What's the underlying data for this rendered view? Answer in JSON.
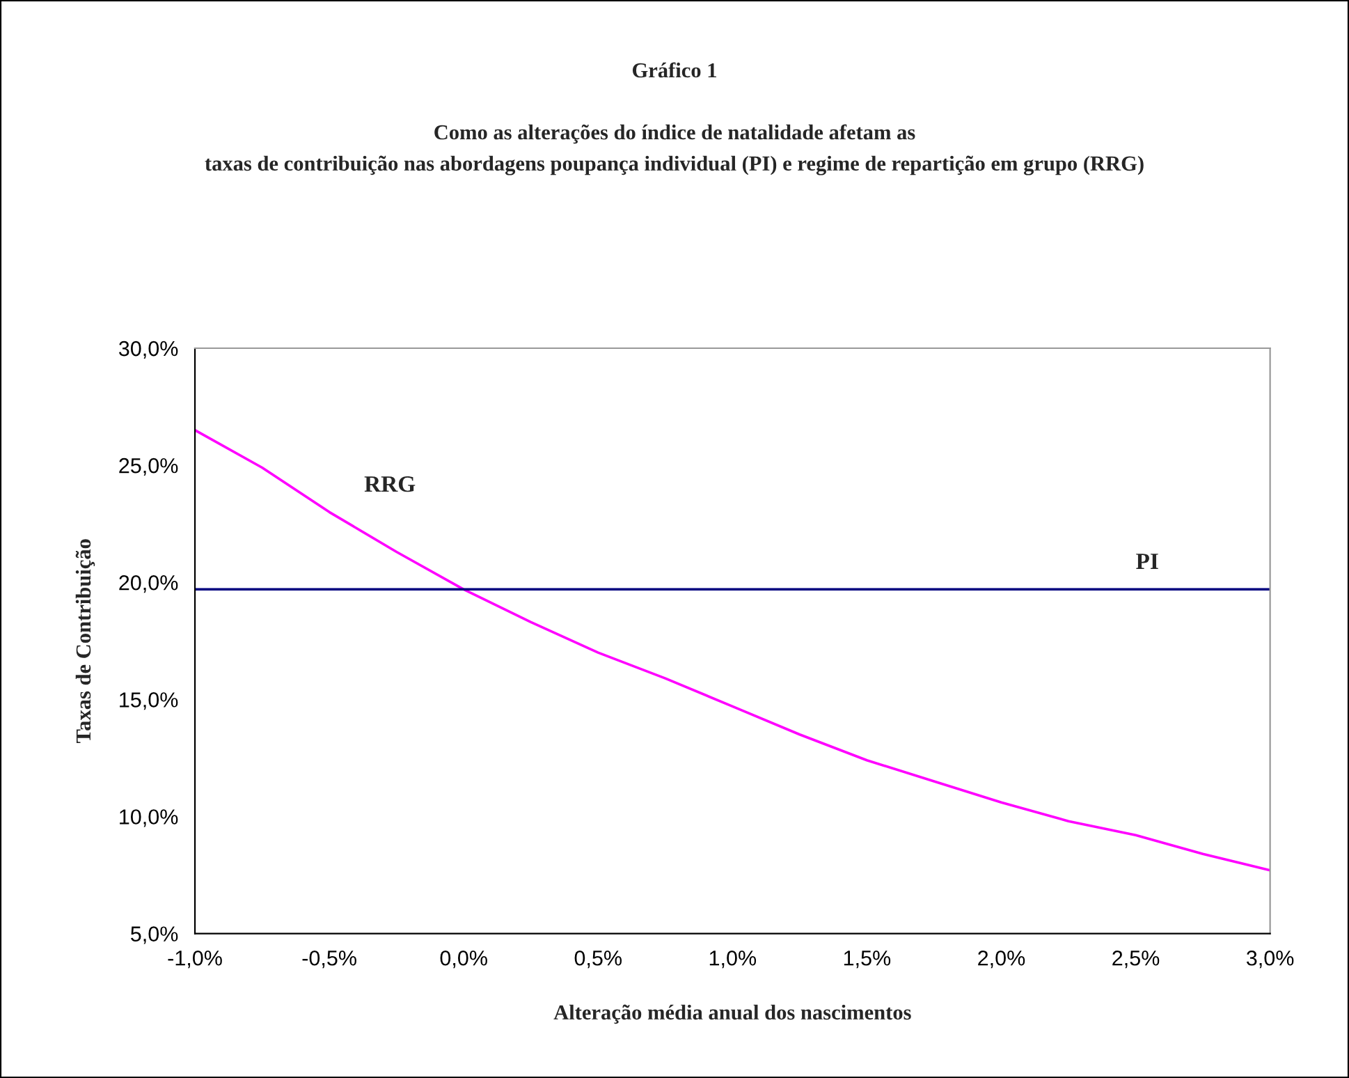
{
  "chart_data": {
    "type": "line",
    "title": "Gráfico 1",
    "subtitle": "Como as alterações do índice de natalidade afetam as\ntaxas de contribuição nas abordagens poupança individual (PI) e regime de repartição em grupo (RRG)",
    "xlabel": "Alteração média anual dos nascimentos",
    "ylabel": "Taxas de Contribuição",
    "x": [
      -1.0,
      -0.75,
      -0.5,
      -0.25,
      0.0,
      0.25,
      0.5,
      0.75,
      1.0,
      1.25,
      1.5,
      1.75,
      2.0,
      2.25,
      2.5,
      2.75,
      3.0
    ],
    "series": [
      {
        "name": "RRG",
        "color": "#ff00ff",
        "values": [
          26.5,
          24.9,
          23.0,
          21.3,
          19.7,
          18.3,
          17.0,
          15.9,
          14.7,
          13.5,
          12.4,
          11.5,
          10.6,
          9.8,
          9.2,
          8.4,
          7.7
        ]
      },
      {
        "name": "PI",
        "color": "#000080",
        "values": [
          19.7,
          19.7,
          19.7,
          19.7,
          19.7,
          19.7,
          19.7,
          19.7,
          19.7,
          19.7,
          19.7,
          19.7,
          19.7,
          19.7,
          19.7,
          19.7,
          19.7
        ]
      }
    ],
    "xlim": [
      -1.0,
      3.0
    ],
    "xticks": [
      {
        "value": -1.0,
        "label": "-1,0%"
      },
      {
        "value": -0.5,
        "label": "-0,5%"
      },
      {
        "value": 0.0,
        "label": "0,0%"
      },
      {
        "value": 0.5,
        "label": "0,5%"
      },
      {
        "value": 1.0,
        "label": "1,0%"
      },
      {
        "value": 1.5,
        "label": "1,5%"
      },
      {
        "value": 2.0,
        "label": "2,0%"
      },
      {
        "value": 2.5,
        "label": "2,5%"
      },
      {
        "value": 3.0,
        "label": "3,0%"
      }
    ],
    "ylim": [
      5.0,
      30.0
    ],
    "yticks": [
      {
        "value": 5.0,
        "label": "5,0%"
      },
      {
        "value": 10.0,
        "label": "10,0%"
      },
      {
        "value": 15.0,
        "label": "15,0%"
      },
      {
        "value": 20.0,
        "label": "20,0%"
      },
      {
        "value": 25.0,
        "label": "25,0%"
      },
      {
        "value": 30.0,
        "label": "30,0%"
      }
    ],
    "grid": false,
    "legend": false,
    "marker": "none",
    "line_style": "solid"
  }
}
